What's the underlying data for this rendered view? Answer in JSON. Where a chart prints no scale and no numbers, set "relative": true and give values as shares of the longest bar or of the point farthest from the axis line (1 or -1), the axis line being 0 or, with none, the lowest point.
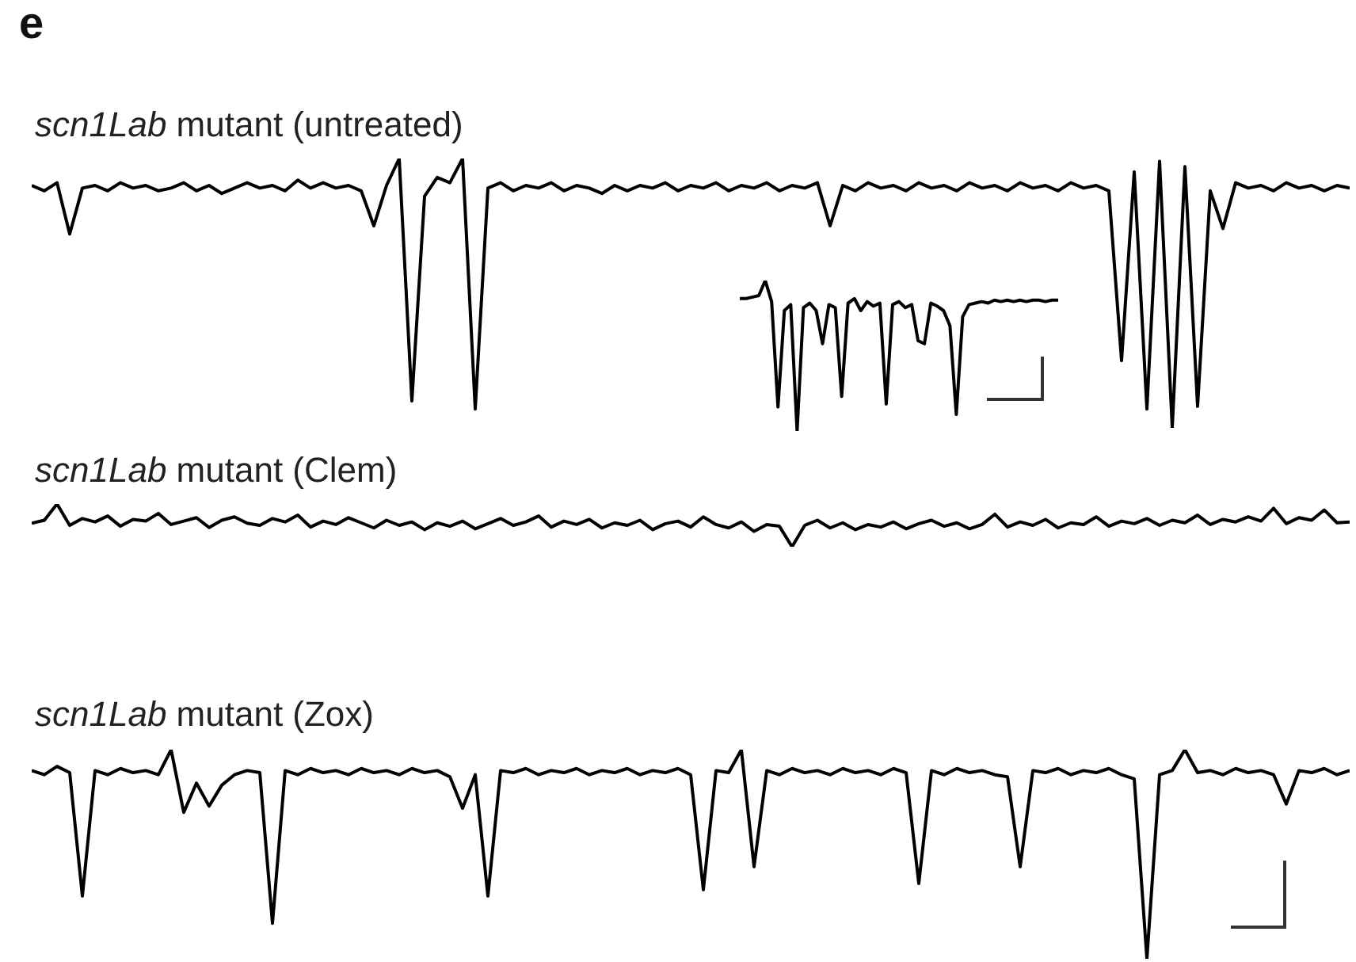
{
  "chart_data": [
    {
      "type": "line",
      "title": "scn1Lab mutant (untreated)",
      "annotations": [
        "e"
      ],
      "relative": true,
      "color": "#000000",
      "categories": [
        null,
        null,
        null,
        null,
        null,
        null,
        null,
        null,
        null,
        null,
        null,
        null,
        null,
        null,
        null,
        null,
        null,
        null,
        null,
        null,
        null,
        null,
        null,
        null,
        null,
        null,
        null,
        null,
        null,
        null,
        null,
        null,
        null,
        null,
        null,
        null,
        null,
        null,
        null,
        null,
        null,
        null,
        null,
        null,
        null,
        null,
        null,
        null,
        null,
        null,
        null,
        null,
        null,
        null,
        null,
        null,
        null,
        null,
        null,
        null,
        null,
        null,
        null,
        null,
        null,
        null,
        null,
        null,
        null,
        null,
        null,
        null,
        null,
        null,
        null,
        null,
        null,
        null,
        null,
        null,
        null,
        null,
        null,
        null,
        null,
        null,
        null,
        null,
        null,
        null,
        null,
        null,
        null,
        null,
        null,
        null,
        null,
        null,
        null,
        null,
        null,
        null,
        null,
        null,
        null
      ],
      "values": [
        0.9,
        0.88,
        0.91,
        0.72,
        0.89,
        0.9,
        0.88,
        0.91,
        0.89,
        0.9,
        0.88,
        0.89,
        0.91,
        0.88,
        0.9,
        0.87,
        0.89,
        0.91,
        0.89,
        0.9,
        0.88,
        0.92,
        0.89,
        0.91,
        0.89,
        0.9,
        0.88,
        0.75,
        0.9,
        1.0,
        0.1,
        0.86,
        0.93,
        0.91,
        1.0,
        0.07,
        0.89,
        0.91,
        0.88,
        0.9,
        0.89,
        0.91,
        0.88,
        0.9,
        0.89,
        0.87,
        0.9,
        0.88,
        0.9,
        0.89,
        0.91,
        0.88,
        0.9,
        0.89,
        0.91,
        0.88,
        0.9,
        0.89,
        0.91,
        0.88,
        0.9,
        0.89,
        0.91,
        0.75,
        0.9,
        0.88,
        0.91,
        0.89,
        0.9,
        0.88,
        0.91,
        0.89,
        0.9,
        0.88,
        0.91,
        0.89,
        0.9,
        0.88,
        0.91,
        0.89,
        0.9,
        0.88,
        0.91,
        0.89,
        0.9,
        0.88,
        0.25,
        0.95,
        0.07,
        0.99,
        0.0,
        0.97,
        0.08,
        0.88,
        0.74,
        0.91,
        0.89,
        0.9,
        0.88,
        0.91,
        0.89,
        0.9,
        0.88,
        0.9,
        0.89
      ]
    },
    {
      "type": "line",
      "relative": true,
      "color": "#000000",
      "categories": [
        null,
        null,
        null,
        null,
        null,
        null,
        null,
        null,
        null,
        null,
        null,
        null,
        null,
        null,
        null,
        null,
        null,
        null,
        null,
        null,
        null,
        null,
        null,
        null,
        null,
        null,
        null,
        null,
        null,
        null,
        null,
        null,
        null,
        null,
        null,
        null,
        null,
        null,
        null,
        null,
        null,
        null,
        null,
        null,
        null,
        null,
        null,
        null,
        null,
        null,
        null
      ],
      "values": [
        0.88,
        0.88,
        0.89,
        0.9,
        1.0,
        0.86,
        0.16,
        0.8,
        0.84,
        0.0,
        0.82,
        0.85,
        0.8,
        0.58,
        0.84,
        0.82,
        0.23,
        0.85,
        0.88,
        0.8,
        0.86,
        0.83,
        0.85,
        0.18,
        0.84,
        0.86,
        0.82,
        0.84,
        0.6,
        0.58,
        0.85,
        0.83,
        0.8,
        0.7,
        0.11,
        0.76,
        0.84,
        0.85,
        0.86,
        0.85,
        0.87,
        0.86,
        0.87,
        0.86,
        0.87,
        0.86,
        0.87,
        0.87,
        0.86,
        0.87,
        0.87
      ]
    },
    {
      "type": "line",
      "title": "scn1Lab mutant (Clem)",
      "relative": true,
      "color": "#000000",
      "categories": [
        null,
        null,
        null,
        null,
        null,
        null,
        null,
        null,
        null,
        null,
        null,
        null,
        null,
        null,
        null,
        null,
        null,
        null,
        null,
        null,
        null,
        null,
        null,
        null,
        null,
        null,
        null,
        null,
        null,
        null,
        null,
        null,
        null,
        null,
        null,
        null,
        null,
        null,
        null,
        null,
        null,
        null,
        null,
        null,
        null,
        null,
        null,
        null,
        null,
        null,
        null,
        null,
        null,
        null,
        null,
        null,
        null,
        null,
        null,
        null,
        null,
        null,
        null,
        null,
        null,
        null,
        null,
        null,
        null,
        null,
        null,
        null,
        null,
        null,
        null,
        null,
        null,
        null,
        null,
        null,
        null,
        null,
        null,
        null,
        null,
        null,
        null,
        null,
        null,
        null,
        null,
        null,
        null,
        null,
        null,
        null,
        null,
        null,
        null,
        null,
        null,
        null,
        null,
        null,
        null
      ],
      "values": [
        0.55,
        0.62,
        1.0,
        0.5,
        0.66,
        0.58,
        0.72,
        0.48,
        0.64,
        0.6,
        0.78,
        0.52,
        0.6,
        0.68,
        0.45,
        0.62,
        0.7,
        0.55,
        0.5,
        0.66,
        0.58,
        0.74,
        0.46,
        0.6,
        0.52,
        0.68,
        0.56,
        0.44,
        0.62,
        0.5,
        0.58,
        0.4,
        0.56,
        0.48,
        0.6,
        0.42,
        0.54,
        0.66,
        0.5,
        0.58,
        0.72,
        0.46,
        0.6,
        0.52,
        0.64,
        0.44,
        0.56,
        0.5,
        0.62,
        0.4,
        0.54,
        0.6,
        0.46,
        0.7,
        0.52,
        0.44,
        0.58,
        0.36,
        0.52,
        0.48,
        0.0,
        0.5,
        0.62,
        0.44,
        0.56,
        0.4,
        0.52,
        0.46,
        0.58,
        0.42,
        0.54,
        0.62,
        0.48,
        0.56,
        0.42,
        0.52,
        0.76,
        0.46,
        0.58,
        0.5,
        0.64,
        0.44,
        0.56,
        0.52,
        0.7,
        0.48,
        0.6,
        0.54,
        0.66,
        0.5,
        0.62,
        0.56,
        0.74,
        0.52,
        0.64,
        0.58,
        0.7,
        0.6,
        0.9,
        0.54,
        0.68,
        0.62,
        0.86,
        0.56,
        0.58
      ]
    },
    {
      "type": "line",
      "title": "scn1Lab mutant (Zox)",
      "relative": true,
      "color": "#000000",
      "categories": [
        null,
        null,
        null,
        null,
        null,
        null,
        null,
        null,
        null,
        null,
        null,
        null,
        null,
        null,
        null,
        null,
        null,
        null,
        null,
        null,
        null,
        null,
        null,
        null,
        null,
        null,
        null,
        null,
        null,
        null,
        null,
        null,
        null,
        null,
        null,
        null,
        null,
        null,
        null,
        null,
        null,
        null,
        null,
        null,
        null,
        null,
        null,
        null,
        null,
        null,
        null,
        null,
        null,
        null,
        null,
        null,
        null,
        null,
        null,
        null,
        null,
        null,
        null,
        null,
        null,
        null,
        null,
        null,
        null,
        null,
        null,
        null,
        null,
        null,
        null,
        null,
        null,
        null,
        null,
        null,
        null,
        null,
        null,
        null,
        null,
        null,
        null,
        null,
        null,
        null,
        null,
        null,
        null,
        null,
        null,
        null,
        null,
        null,
        null,
        null,
        null,
        null,
        null,
        null,
        null
      ],
      "values": [
        0.9,
        0.88,
        0.92,
        0.89,
        0.3,
        0.9,
        0.88,
        0.91,
        0.89,
        0.9,
        0.88,
        1.0,
        0.7,
        0.84,
        0.73,
        0.83,
        0.88,
        0.9,
        0.89,
        0.17,
        0.9,
        0.88,
        0.91,
        0.89,
        0.9,
        0.88,
        0.91,
        0.89,
        0.9,
        0.88,
        0.91,
        0.89,
        0.9,
        0.87,
        0.72,
        0.88,
        0.3,
        0.9,
        0.89,
        0.91,
        0.88,
        0.9,
        0.89,
        0.91,
        0.88,
        0.9,
        0.89,
        0.91,
        0.88,
        0.9,
        0.89,
        0.91,
        0.88,
        0.33,
        0.9,
        0.89,
        1.0,
        0.44,
        0.9,
        0.88,
        0.91,
        0.89,
        0.9,
        0.88,
        0.91,
        0.89,
        0.9,
        0.88,
        0.91,
        0.89,
        0.36,
        0.9,
        0.88,
        0.91,
        0.89,
        0.9,
        0.88,
        0.87,
        0.44,
        0.9,
        0.89,
        0.91,
        0.88,
        0.9,
        0.89,
        0.91,
        0.88,
        0.86,
        0.0,
        0.88,
        0.9,
        1.0,
        0.89,
        0.9,
        0.88,
        0.91,
        0.89,
        0.9,
        0.88,
        0.74,
        0.9,
        0.89,
        0.91,
        0.88,
        0.9
      ]
    }
  ]
}
